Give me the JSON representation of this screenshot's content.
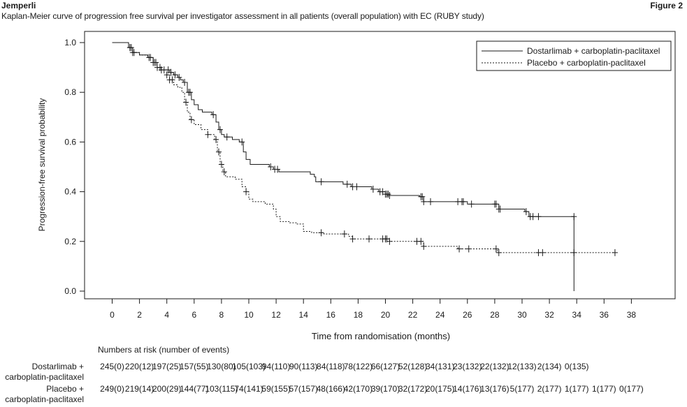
{
  "header": {
    "brand": "Jemperli",
    "figure_label": "Figure 2",
    "title": "Kaplan-Meier curve of progression free survival per investigator assessment in all patients (overall population) with EC (RUBY study)"
  },
  "chart_data": {
    "type": "line",
    "subtype": "kaplan-meier-step",
    "title": "",
    "xlabel": "Time from randomisation (months)",
    "ylabel": "Progression-free survival probability",
    "xlim": [
      -1,
      39
    ],
    "ylim": [
      -0.04,
      1.05
    ],
    "xticks": [
      0,
      2,
      4,
      6,
      8,
      10,
      12,
      14,
      16,
      18,
      20,
      22,
      24,
      26,
      28,
      30,
      32,
      34,
      36,
      38
    ],
    "yticks": [
      0.0,
      0.2,
      0.4,
      0.6,
      0.8,
      1.0
    ],
    "ytick_labels": [
      "0.0",
      "0.2",
      "0.4",
      "0.6",
      "0.8",
      "1.0"
    ],
    "grid": false,
    "legend_position": "top-right",
    "series": [
      {
        "name": "Dostarlimab + carboplatin-paclitaxel",
        "line_style": "solid",
        "points": [
          [
            0,
            1.0
          ],
          [
            1.0,
            1.0
          ],
          [
            1.2,
            0.98
          ],
          [
            1.5,
            0.96
          ],
          [
            2.0,
            0.95
          ],
          [
            2.6,
            0.94
          ],
          [
            3.0,
            0.92
          ],
          [
            3.3,
            0.9
          ],
          [
            3.6,
            0.89
          ],
          [
            4.2,
            0.88
          ],
          [
            4.5,
            0.87
          ],
          [
            4.8,
            0.86
          ],
          [
            5.0,
            0.85
          ],
          [
            5.2,
            0.84
          ],
          [
            5.5,
            0.8
          ],
          [
            5.8,
            0.77
          ],
          [
            6.0,
            0.75
          ],
          [
            6.3,
            0.73
          ],
          [
            6.6,
            0.72
          ],
          [
            7.0,
            0.72
          ],
          [
            7.3,
            0.71
          ],
          [
            7.6,
            0.68
          ],
          [
            7.8,
            0.65
          ],
          [
            8.0,
            0.63
          ],
          [
            8.2,
            0.62
          ],
          [
            8.8,
            0.61
          ],
          [
            9.3,
            0.6
          ],
          [
            9.6,
            0.56
          ],
          [
            9.8,
            0.53
          ],
          [
            10.1,
            0.51
          ],
          [
            11.5,
            0.5
          ],
          [
            11.8,
            0.49
          ],
          [
            12.2,
            0.48
          ],
          [
            14.5,
            0.47
          ],
          [
            14.8,
            0.46
          ],
          [
            14.9,
            0.44
          ],
          [
            16.0,
            0.44
          ],
          [
            16.9,
            0.43
          ],
          [
            17.5,
            0.42
          ],
          [
            19.0,
            0.41
          ],
          [
            19.5,
            0.4
          ],
          [
            20.0,
            0.39
          ],
          [
            20.3,
            0.385
          ],
          [
            22.5,
            0.38
          ],
          [
            22.8,
            0.36
          ],
          [
            24.5,
            0.36
          ],
          [
            26.0,
            0.35
          ],
          [
            28.0,
            0.35
          ],
          [
            28.3,
            0.33
          ],
          [
            29.0,
            0.33
          ],
          [
            30.2,
            0.32
          ],
          [
            30.5,
            0.3
          ],
          [
            31.0,
            0.3
          ],
          [
            33.8,
            0.3
          ],
          [
            33.8,
            0.0
          ]
        ],
        "censor_times": [
          1.3,
          1.4,
          1.6,
          2.7,
          3.0,
          3.2,
          3.5,
          3.8,
          4.1,
          4.3,
          4.6,
          4.9,
          5.3,
          5.6,
          5.7,
          7.4,
          7.9,
          8.4,
          9.5,
          11.6,
          11.9,
          12.1,
          15.3,
          17.2,
          17.6,
          17.9,
          19.1,
          19.6,
          19.8,
          20.0,
          20.1,
          20.2,
          20.3,
          22.6,
          22.7,
          22.8,
          23.3,
          25.3,
          25.6,
          25.7,
          26.3,
          28.0,
          28.1,
          28.3,
          28.4,
          30.3,
          30.6,
          30.8,
          31.2,
          33.8
        ]
      },
      {
        "name": "Placebo + carboplatin-paclitaxel",
        "line_style": "dashed",
        "points": [
          [
            0,
            1.0
          ],
          [
            1.0,
            1.0
          ],
          [
            1.2,
            0.98
          ],
          [
            1.5,
            0.96
          ],
          [
            2.0,
            0.95
          ],
          [
            2.6,
            0.94
          ],
          [
            3.0,
            0.92
          ],
          [
            3.3,
            0.9
          ],
          [
            3.6,
            0.89
          ],
          [
            4.0,
            0.87
          ],
          [
            4.2,
            0.85
          ],
          [
            4.5,
            0.83
          ],
          [
            4.8,
            0.82
          ],
          [
            5.1,
            0.8
          ],
          [
            5.3,
            0.76
          ],
          [
            5.5,
            0.72
          ],
          [
            5.7,
            0.69
          ],
          [
            6.0,
            0.67
          ],
          [
            6.5,
            0.65
          ],
          [
            7.0,
            0.63
          ],
          [
            7.5,
            0.61
          ],
          [
            7.7,
            0.56
          ],
          [
            7.9,
            0.51
          ],
          [
            8.1,
            0.48
          ],
          [
            8.3,
            0.46
          ],
          [
            9.0,
            0.45
          ],
          [
            9.5,
            0.42
          ],
          [
            9.8,
            0.4
          ],
          [
            10.0,
            0.37
          ],
          [
            10.3,
            0.36
          ],
          [
            11.2,
            0.35
          ],
          [
            11.8,
            0.33
          ],
          [
            12.0,
            0.3
          ],
          [
            12.3,
            0.28
          ],
          [
            13.0,
            0.275
          ],
          [
            13.5,
            0.27
          ],
          [
            14.0,
            0.24
          ],
          [
            14.6,
            0.235
          ],
          [
            15.5,
            0.23
          ],
          [
            16.5,
            0.23
          ],
          [
            17.3,
            0.22
          ],
          [
            17.6,
            0.21
          ],
          [
            19.0,
            0.21
          ],
          [
            20.0,
            0.21
          ],
          [
            20.3,
            0.2
          ],
          [
            22.5,
            0.2
          ],
          [
            22.8,
            0.18
          ],
          [
            24.0,
            0.18
          ],
          [
            25.0,
            0.18
          ],
          [
            25.3,
            0.17
          ],
          [
            28.0,
            0.17
          ],
          [
            28.2,
            0.155
          ],
          [
            32.0,
            0.155
          ],
          [
            36.8,
            0.155
          ]
        ],
        "censor_times": [
          1.3,
          1.5,
          2.8,
          3.1,
          3.3,
          3.6,
          4.0,
          4.2,
          4.4,
          5.4,
          5.8,
          7.0,
          7.6,
          7.8,
          8.0,
          8.2,
          9.8,
          15.3,
          17.0,
          17.6,
          18.8,
          19.8,
          20.0,
          20.1,
          20.3,
          22.3,
          22.6,
          22.8,
          25.4,
          26.1,
          28.1,
          28.3,
          31.2,
          31.5,
          33.8,
          36.8
        ]
      }
    ]
  },
  "at_risk": {
    "heading": "Numbers at risk (number of events)",
    "times": [
      0,
      2,
      4,
      6,
      8,
      10,
      12,
      14,
      16,
      18,
      20,
      22,
      24,
      26,
      28,
      30,
      32,
      34,
      36,
      38
    ],
    "rows": [
      {
        "label_line1": "Dostarlimab +",
        "label_line2": "carboplatin-paclitaxel",
        "values": [
          "245(0)",
          "220(12)",
          "197(25)",
          "157(55)",
          "130(80)",
          "105(103)",
          "94(110)",
          "90(113)",
          "84(118)",
          "78(122)",
          "66(127)",
          "52(128)",
          "34(131)",
          "23(132)",
          "22(132)",
          "12(133)",
          "2(134)",
          "0(135)"
        ]
      },
      {
        "label_line1": "Placebo +",
        "label_line2": "carboplatin-paclitaxel",
        "values": [
          "249(0)",
          "219(14)",
          "200(29)",
          "144(77)",
          "103(115)",
          "74(141)",
          "59(155)",
          "57(157)",
          "48(166)",
          "42(170)",
          "39(170)",
          "32(172)",
          "20(175)",
          "14(176)",
          "13(176)",
          "5(177)",
          "2(177)",
          "1(177)",
          "1(177)",
          "0(177)"
        ]
      }
    ]
  }
}
